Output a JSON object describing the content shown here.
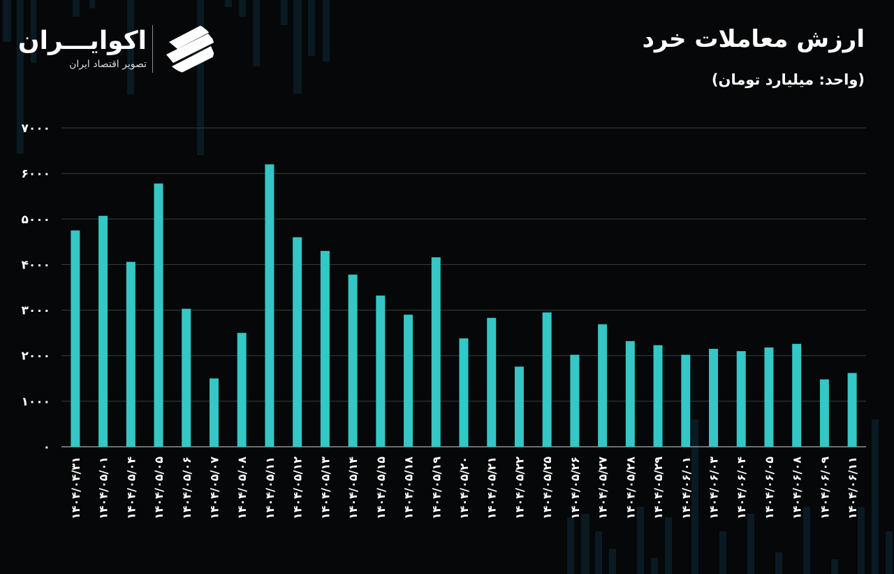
{
  "brand": {
    "name": "اکوایـــران",
    "tagline": "تصویر اقتصاد ایران"
  },
  "colors": {
    "background": "#050708",
    "bar": "#33c7c6",
    "grid": "#3a3f43",
    "axis": "#8e9498",
    "text": "#ffffff"
  },
  "chart_data": {
    "type": "bar",
    "title": "ارزش معاملات خرد",
    "subtitle": "(واحد: میلیارد تومان)",
    "xlabel": "",
    "ylabel": "",
    "ylim": [
      0,
      7000
    ],
    "yticks": [
      0,
      1000,
      2000,
      3000,
      4000,
      5000,
      6000,
      7000
    ],
    "ytick_labels": [
      "۰",
      "۱۰۰۰",
      "۲۰۰۰",
      "۳۰۰۰",
      "۴۰۰۰",
      "۵۰۰۰",
      "۶۰۰۰",
      "۷۰۰۰"
    ],
    "grid": true,
    "legend": "none",
    "categories": [
      "۱۴۰۴/۰۴/۳۱",
      "۱۴۰۴/۰۵/۰۱",
      "۱۴۰۴/۰۵/۰۴",
      "۱۴۰۴/۰۵/۰۵",
      "۱۴۰۴/۰۵/۰۶",
      "۱۴۰۴/۰۵/۰۷",
      "۱۴۰۴/۰۵/۰۸",
      "۱۴۰۴/۰۵/۱۱",
      "۱۴۰۴/۰۵/۱۲",
      "۱۴۰۴/۰۵/۱۳",
      "۱۴۰۴/۰۵/۱۴",
      "۱۴۰۴/۰۵/۱۵",
      "۱۴۰۴/۰۵/۱۸",
      "۱۴۰۴/۰۵/۱۹",
      "۱۴۰۴/۰۵/۲۰",
      "۱۴۰۴/۰۵/۲۱",
      "۱۴۰۴/۰۵/۲۲",
      "۱۴۰۴/۰۵/۲۵",
      "۱۴۰۴/۰۵/۲۶",
      "۱۴۰۴/۰۵/۲۷",
      "۱۴۰۴/۰۵/۲۸",
      "۱۴۰۴/۰۵/۲۹",
      "۱۴۰۴/۰۶/۰۱",
      "۱۴۰۴/۰۶/۰۳",
      "۱۴۰۴/۰۶/۰۴",
      "۱۴۰۴/۰۶/۰۵",
      "۱۴۰۴/۰۶/۰۸",
      "۱۴۰۴/۰۶/۰۹",
      "۱۴۰۴/۰۶/۱۱"
    ],
    "values": [
      4750,
      5070,
      4060,
      5780,
      3030,
      1500,
      2500,
      6200,
      4600,
      4300,
      3780,
      3320,
      2900,
      4160,
      2380,
      2830,
      1760,
      2950,
      2020,
      2690,
      2320,
      2230,
      2020,
      2150,
      2100,
      2180,
      2260,
      1480,
      1620
    ]
  }
}
